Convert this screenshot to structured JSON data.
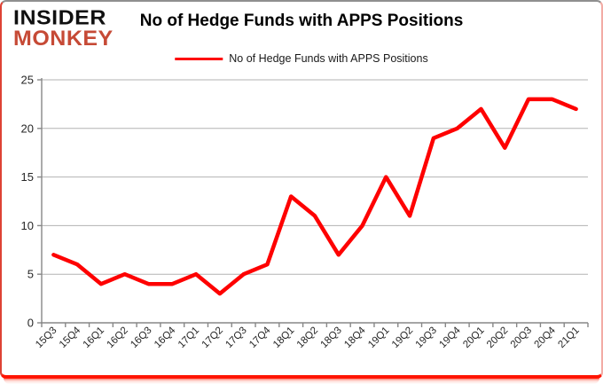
{
  "logo": {
    "line1": "INSIDER",
    "line2": "MONKEY"
  },
  "header": {
    "title": "No of Hedge Funds with APPS Positions"
  },
  "legend": {
    "label": "No of Hedge Funds with APPS Positions"
  },
  "colors": {
    "line": "#fe0000",
    "logo_red": "#c64a36",
    "grid": "#b3b3b3",
    "axis": "#878787",
    "tick_text": "#262626"
  },
  "chart_data": {
    "type": "line",
    "title": "No of Hedge Funds with APPS Positions",
    "categories": [
      "15Q3",
      "15Q4",
      "16Q1",
      "16Q2",
      "16Q3",
      "16Q4",
      "17Q1",
      "17Q2",
      "17Q3",
      "17Q4",
      "18Q1",
      "18Q2",
      "18Q3",
      "18Q4",
      "19Q1",
      "19Q2",
      "19Q3",
      "19Q4",
      "20Q1",
      "20Q2",
      "20Q3",
      "20Q4",
      "21Q1"
    ],
    "series": [
      {
        "name": "No of Hedge Funds with APPS Positions",
        "color": "#fe0000",
        "values": [
          7,
          6,
          4,
          5,
          4,
          4,
          5,
          3,
          5,
          6,
          13,
          11,
          7,
          10,
          15,
          11,
          19,
          20,
          22,
          18,
          23,
          23,
          22
        ]
      }
    ],
    "xlabel": "",
    "ylabel": "",
    "ylim": [
      0,
      25
    ],
    "yticks": [
      0,
      5,
      10,
      15,
      20,
      25
    ],
    "grid": true,
    "legend_position": "top-center"
  }
}
